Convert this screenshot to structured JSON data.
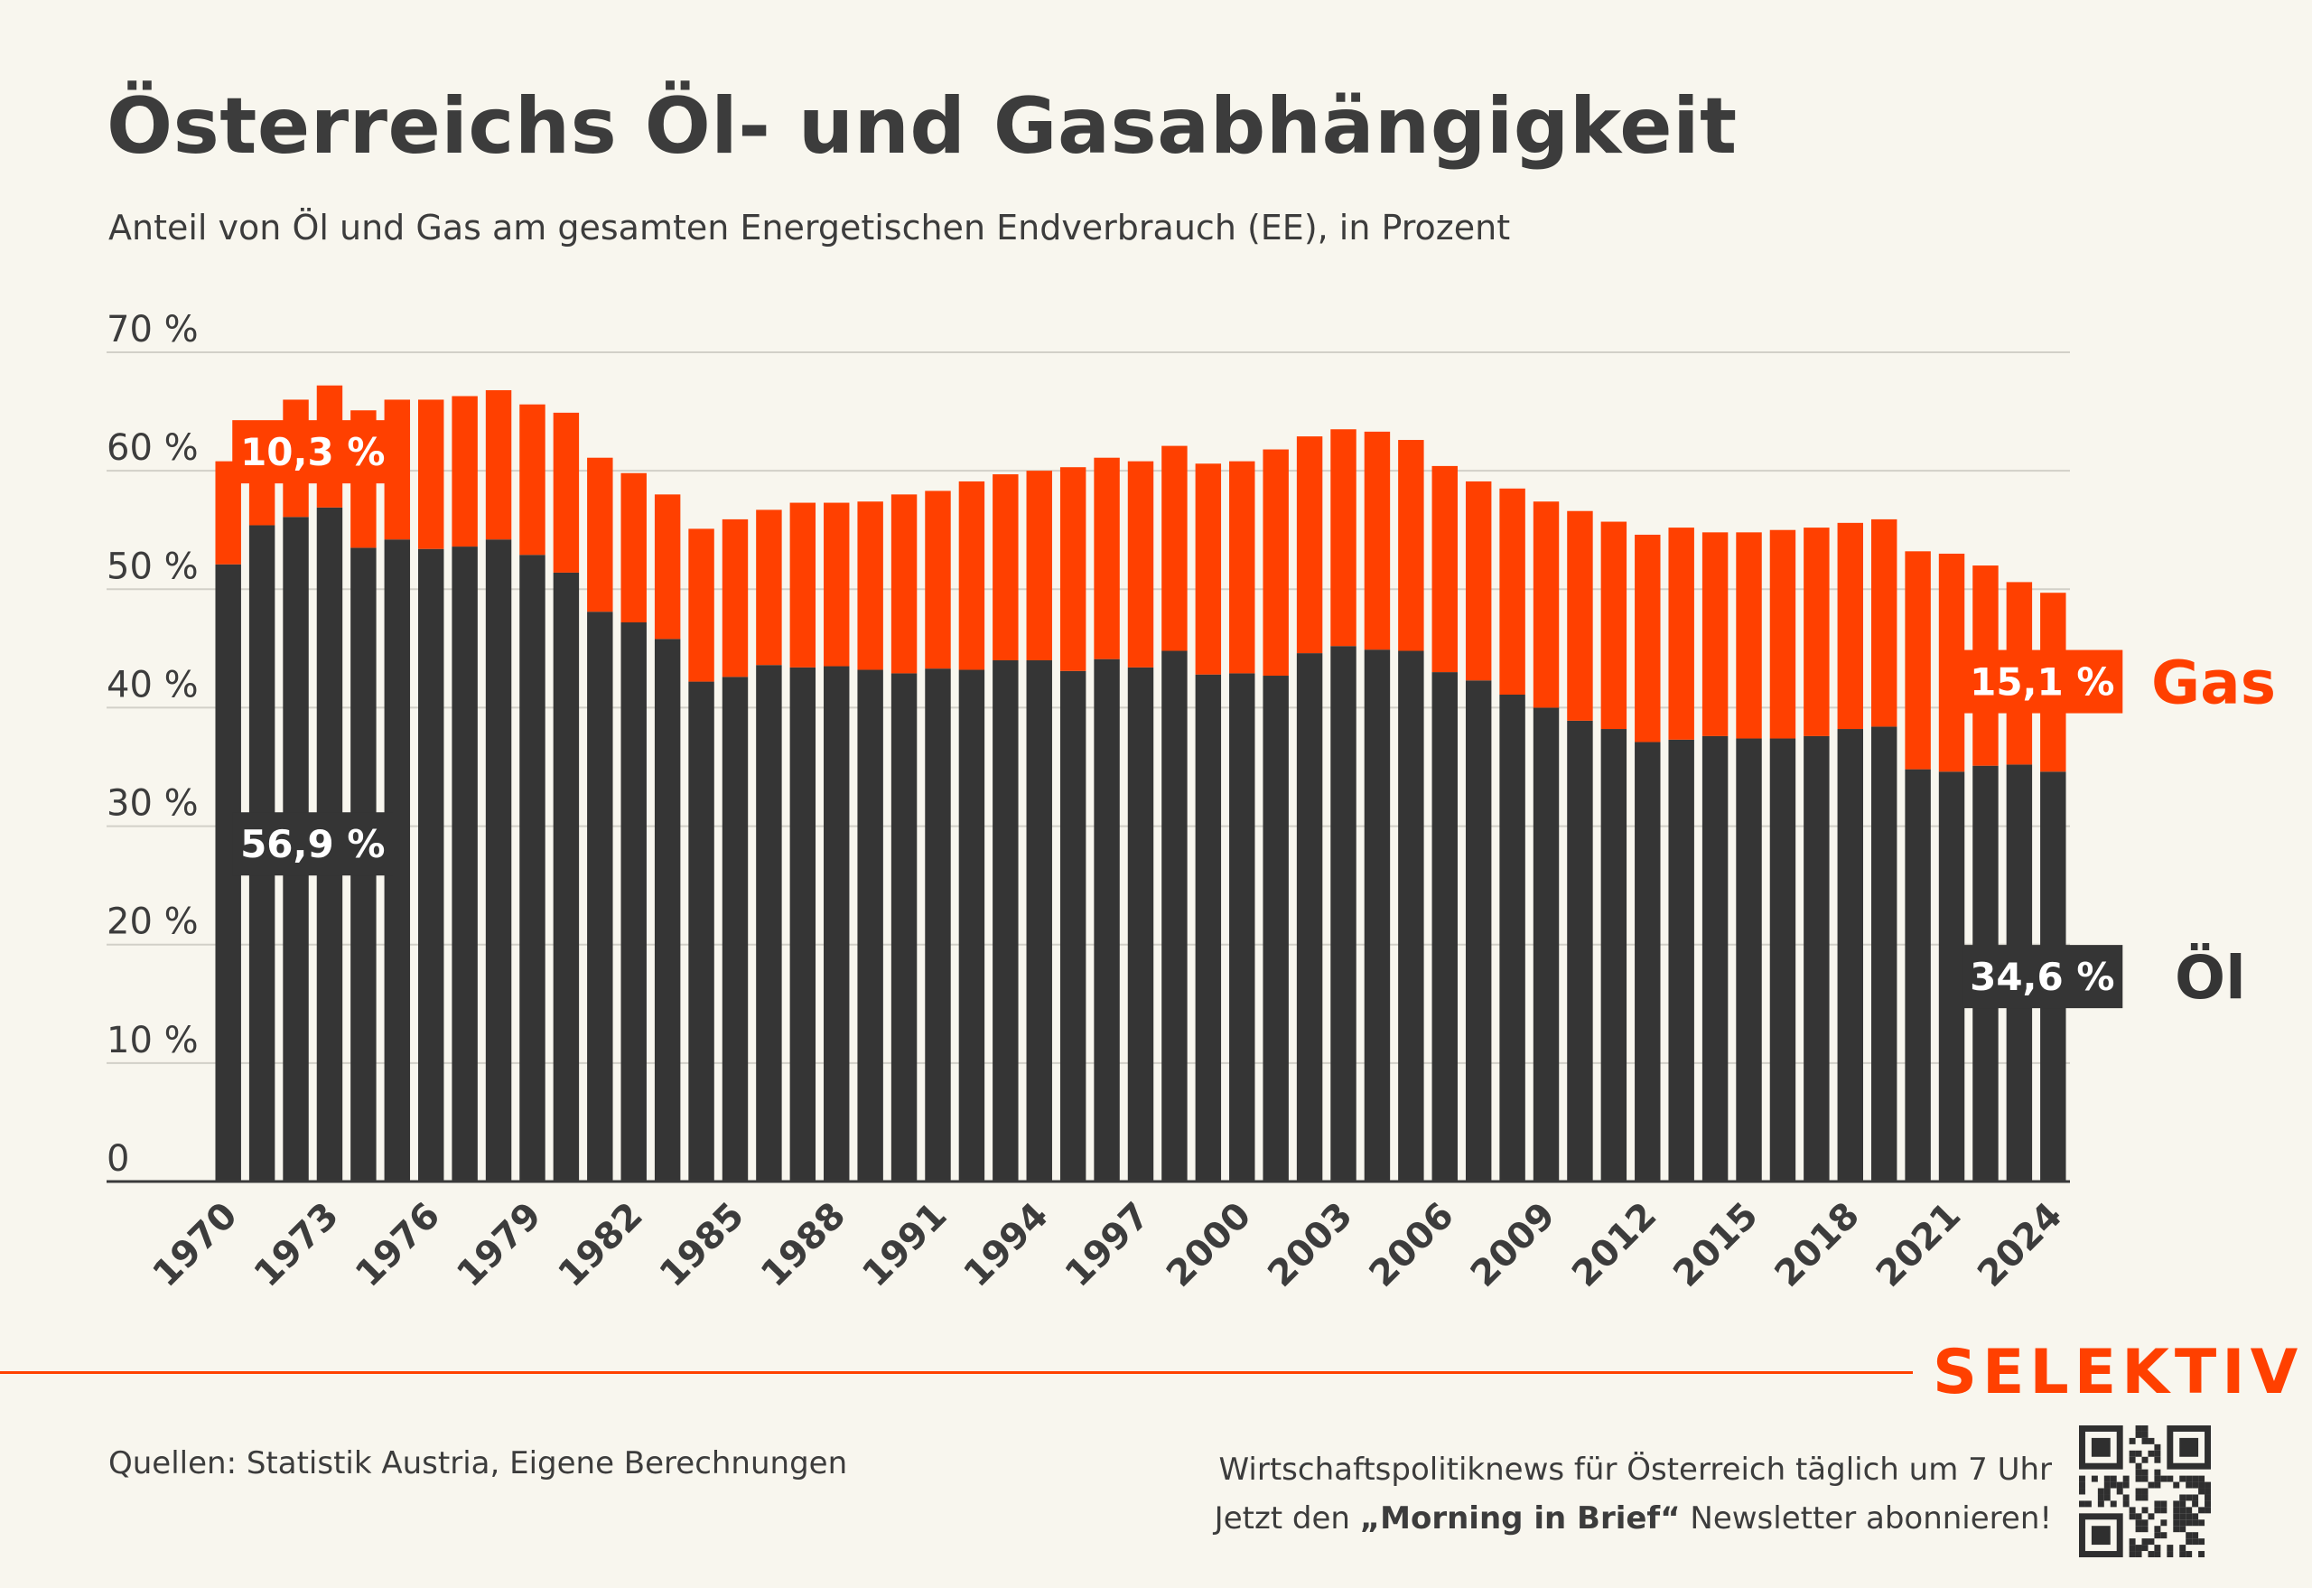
{
  "title": "Österreichs Öl- und Gasabhängigkeit",
  "subtitle": "Anteil von Öl und Gas am gesamten Energetischen Endverbrauch (EE), in Prozent",
  "colors": {
    "oil": "#353535",
    "gas": "#ff4000",
    "background": "#f8f6ee",
    "text": "#3c3c3c"
  },
  "chart_data": {
    "type": "bar",
    "stacked": true,
    "x": [
      1970,
      1971,
      1972,
      1973,
      1974,
      1975,
      1976,
      1977,
      1978,
      1979,
      1980,
      1981,
      1982,
      1983,
      1984,
      1985,
      1986,
      1987,
      1988,
      1989,
      1990,
      1991,
      1992,
      1993,
      1994,
      1995,
      1996,
      1997,
      1998,
      1999,
      2000,
      2001,
      2002,
      2003,
      2004,
      2005,
      2006,
      2007,
      2008,
      2009,
      2010,
      2011,
      2012,
      2013,
      2014,
      2015,
      2016,
      2017,
      2018,
      2019,
      2020,
      2021,
      2022,
      2023,
      2024
    ],
    "x_tick_labels": [
      "1970",
      "1973",
      "1976",
      "1979",
      "1982",
      "1985",
      "1988",
      "1991",
      "1994",
      "1997",
      "2000",
      "2003",
      "2006",
      "2009",
      "2012",
      "2015",
      "2018",
      "2021",
      "2024"
    ],
    "ylim": [
      0,
      70
    ],
    "y_ticks": [
      0,
      10,
      20,
      30,
      40,
      50,
      60,
      70
    ],
    "y_tick_labels": [
      "0",
      "10 %",
      "20 %",
      "30 %",
      "40 %",
      "50 %",
      "60 %",
      "70 %"
    ],
    "grid": true,
    "series": [
      {
        "name": "Öl",
        "color": "#353535",
        "values": [
          52.1,
          55.4,
          56.1,
          56.9,
          53.5,
          54.2,
          53.4,
          53.6,
          54.2,
          52.9,
          51.4,
          48.1,
          47.2,
          45.8,
          42.2,
          42.6,
          43.6,
          43.4,
          43.5,
          43.2,
          42.9,
          43.3,
          43.2,
          44.0,
          44.0,
          43.1,
          44.1,
          43.4,
          44.8,
          42.8,
          42.9,
          42.7,
          44.6,
          45.2,
          44.9,
          44.8,
          43.0,
          42.3,
          41.1,
          40.0,
          38.9,
          38.2,
          37.1,
          37.3,
          37.6,
          37.4,
          37.4,
          37.6,
          38.2,
          38.4,
          34.8,
          34.6,
          35.1,
          35.2,
          34.6
        ]
      },
      {
        "name": "Gas",
        "color": "#ff4000",
        "values": [
          8.7,
          8.7,
          9.9,
          10.3,
          11.6,
          11.8,
          12.6,
          12.7,
          12.6,
          12.7,
          13.5,
          13.0,
          12.6,
          12.2,
          12.9,
          13.3,
          13.1,
          13.9,
          13.8,
          14.2,
          15.1,
          15.0,
          15.9,
          15.7,
          16.0,
          17.2,
          17.0,
          17.4,
          17.3,
          17.8,
          17.9,
          19.1,
          18.3,
          18.3,
          18.4,
          17.8,
          17.4,
          16.8,
          17.4,
          17.4,
          17.7,
          17.5,
          17.5,
          17.9,
          17.2,
          17.4,
          17.6,
          17.6,
          17.4,
          17.5,
          18.4,
          18.4,
          16.9,
          15.4,
          15.1
        ]
      }
    ],
    "annotations": [
      {
        "text": "10,3 %",
        "series": "Gas",
        "year": 1973
      },
      {
        "text": "56,9 %",
        "series": "Öl",
        "year": 1973
      },
      {
        "text": "15,1 %",
        "series": "Gas",
        "year": 2024
      },
      {
        "text": "34,6 %",
        "series": "Öl",
        "year": 2024
      }
    ],
    "end_labels": [
      "Gas",
      "Öl"
    ]
  },
  "footer": {
    "brand": "SELEKTIV",
    "source": "Quellen: Statistik Austria, Eigene Berechnungen",
    "promo_line1": "Wirtschaftspolitiknews für Österreich täglich um 7 Uhr",
    "promo_line2_pre": "Jetzt den ",
    "promo_line2_bold": "„Morning in Brief“",
    "promo_line2_post": " Newsletter abonnieren!",
    "qr_icon": "qr-code-icon"
  }
}
